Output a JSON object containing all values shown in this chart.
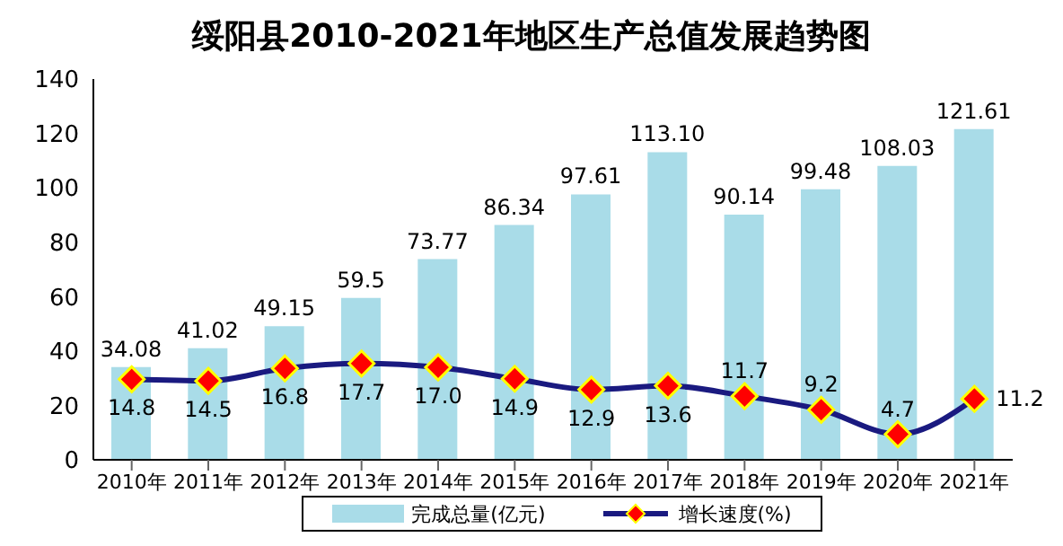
{
  "chart_data": {
    "type": "bar",
    "title": "绥阳县2010-2021年地区生产总值发展趋势图",
    "categories": [
      "2010年",
      "2011年",
      "2012年",
      "2013年",
      "2014年",
      "2015年",
      "2016年",
      "2017年",
      "2018年",
      "2019年",
      "2020年",
      "2021年"
    ],
    "series": [
      {
        "name": "完成总量(亿元)",
        "color": "#a9dce8",
        "values": [
          34.08,
          41.02,
          49.15,
          59.5,
          73.77,
          86.34,
          97.61,
          113.1,
          90.14,
          99.48,
          108.03,
          121.61
        ],
        "value_labels": [
          "34.08",
          "41.02",
          "49.15",
          "59.5",
          "73.77",
          "86.34",
          "97.61",
          "113.10",
          "90.14",
          "99.48",
          "108.03",
          "121.61"
        ]
      },
      {
        "name": "增长速度(%)",
        "type": "line",
        "axis": "y2",
        "color": "#1a1a80",
        "marker": "diamond",
        "values": [
          14.8,
          14.5,
          16.8,
          17.7,
          17.0,
          14.9,
          12.9,
          13.6,
          11.7,
          9.2,
          4.7,
          11.2
        ],
        "value_labels": [
          "14.8",
          "14.5",
          "16.8",
          "17.7",
          "17.0",
          "14.9",
          "12.9",
          "13.6",
          "11.7",
          "9.2",
          "4.7",
          "11.2"
        ]
      }
    ],
    "ylim": [
      0,
      140
    ],
    "yticks": [
      0,
      20,
      40,
      60,
      80,
      100,
      120,
      140
    ],
    "y2lim": [
      0,
      70
    ],
    "grid": false,
    "legend": "bottom"
  }
}
